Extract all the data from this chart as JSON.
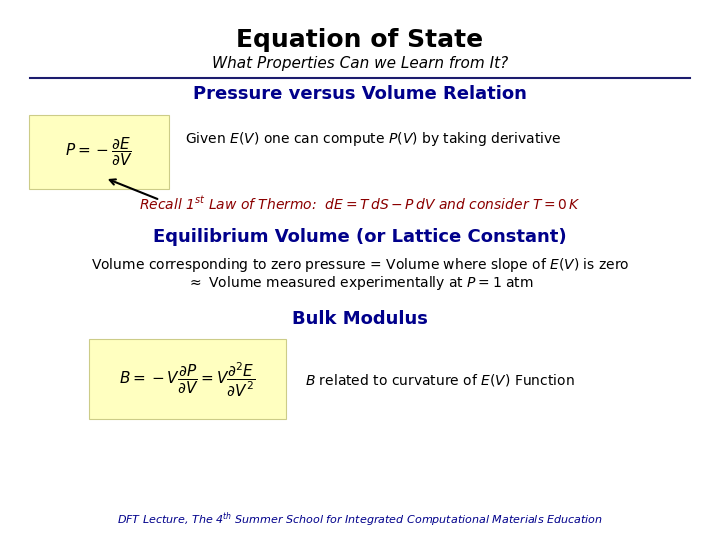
{
  "title": "Equation of State",
  "subtitle": "What Properties Can we Learn from It?",
  "title_color": "#000000",
  "subtitle_color": "#000000",
  "section1_header": "Pressure versus Volume Relation",
  "section1_color": "#00008B",
  "section1_text": "Given $E(V)$ one can compute $P(V)$ by taking derivative",
  "section1_recall": "Recall 1$^{st}$ Law of Thermo:  $dE = T\\,dS - P\\,dV$ and consider $T = 0\\,K$",
  "section1_recall_color": "#8B0000",
  "section2_header": "Equilibrium Volume (or Lattice Constant)",
  "section2_color": "#00008B",
  "section2_line1": "Volume corresponding to zero pressure = Volume where slope of $E(V)$ is zero",
  "section2_line2": "$\\approx$ Volume measured experimentally at $P = 1$ atm",
  "section3_header": "Bulk Modulus",
  "section3_color": "#00008B",
  "section3_text": "$B$ related to curvature of $E(V)$ Function",
  "footer": "DFT Lecture, The 4$^{th}$ Summer School for Integrated Computational Materials Education",
  "footer_color": "#00008B",
  "bg_color": "#ffffff",
  "box_color": "#FFFFC0",
  "hr_color": "#1C1C6E",
  "title_fontsize": 18,
  "subtitle_fontsize": 11,
  "section_header_fontsize": 13,
  "body_fontsize": 10,
  "eq_fontsize": 11,
  "footer_fontsize": 8
}
